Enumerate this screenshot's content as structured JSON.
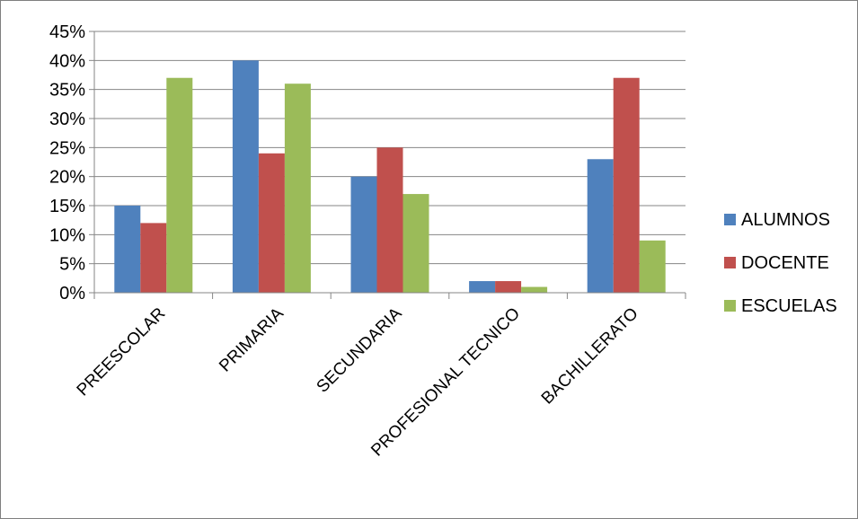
{
  "chart_data": {
    "type": "bar",
    "categories": [
      "PREESCOLAR",
      "PRIMARIA",
      "SECUNDARIA",
      "PROFESIONAL TECNICO",
      "BACHILLERATO"
    ],
    "series": [
      {
        "name": "ALUMNOS",
        "values": [
          15,
          40,
          20,
          2,
          23
        ],
        "color": "#4f81bd"
      },
      {
        "name": "DOCENTE",
        "values": [
          12,
          24,
          25,
          2,
          37
        ],
        "color": "#c0504d"
      },
      {
        "name": "ESCUELAS",
        "values": [
          37,
          36,
          17,
          1,
          9
        ],
        "color": "#9bbb59"
      }
    ],
    "yticks": [
      "0%",
      "5%",
      "10%",
      "15%",
      "20%",
      "25%",
      "30%",
      "35%",
      "40%",
      "45%"
    ],
    "ylim": [
      0,
      45
    ],
    "grid": true,
    "legend_position": "right"
  }
}
